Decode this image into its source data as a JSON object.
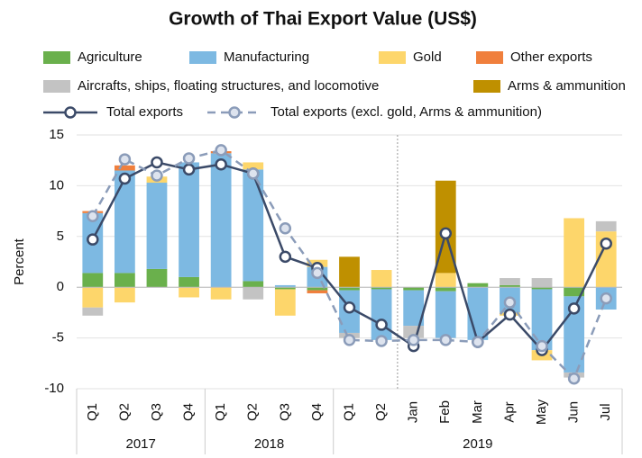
{
  "chart_data": {
    "type": "bar",
    "title": "Growth of Thai Export Value (US$)",
    "y_label": "Percent",
    "stacked": true,
    "grid": true,
    "ylim": [
      -10,
      15
    ],
    "yticks": [
      -10,
      -5,
      0,
      5,
      10,
      15
    ],
    "groups": [
      {
        "label": "2017",
        "categories": [
          "Q1",
          "Q2",
          "Q3",
          "Q4"
        ]
      },
      {
        "label": "2018",
        "categories": [
          "Q1",
          "Q2",
          "Q3",
          "Q4"
        ]
      },
      {
        "label": "2019",
        "categories": [
          "Q1",
          "Q2",
          "Jan",
          "Feb",
          "Mar",
          "Apr",
          "May",
          "Jun",
          "Jul"
        ]
      }
    ],
    "series": [
      {
        "name": "Agriculture",
        "color": "#6ab04c",
        "values": [
          1.4,
          1.4,
          1.8,
          1.0,
          0,
          0.6,
          -0.2,
          -0.3,
          -0.3,
          -0.2,
          -0.3,
          -0.4,
          0.4,
          0.2,
          -0.2,
          -0.9,
          0
        ]
      },
      {
        "name": "Manufacturing",
        "color": "#7db9e2",
        "values": [
          5.9,
          10.1,
          8.5,
          11.3,
          13.2,
          11.0,
          0.2,
          2.0,
          -4.2,
          -5.0,
          -3.5,
          -4.6,
          -5.2,
          -2.5,
          -6.0,
          -7.5,
          -2.2
        ]
      },
      {
        "name": "Gold",
        "color": "#fdd66b",
        "values": [
          -2.0,
          -1.5,
          0.6,
          -1.0,
          -1.2,
          0.7,
          -2.6,
          0.7,
          0,
          1.7,
          0,
          1.4,
          0,
          -0.3,
          -1.0,
          6.8,
          5.5
        ]
      },
      {
        "name": "Other exports",
        "color": "#f07f3c",
        "values": [
          0.2,
          0.5,
          0,
          0,
          0.2,
          0,
          0,
          -0.3,
          0,
          0,
          0,
          0,
          0,
          0,
          0,
          0,
          0
        ]
      },
      {
        "name": "Aircrafts, ships, floating structures, and locomotive",
        "color": "#c3c3c3",
        "values": [
          -0.8,
          0,
          0,
          0,
          0,
          -1.2,
          0,
          0,
          -0.5,
          0,
          -1.2,
          0,
          0,
          0.7,
          0.9,
          -0.5,
          1.0
        ]
      },
      {
        "name": "Arms & ammunition",
        "color": "#bf9000",
        "values": [
          0,
          0,
          0,
          0,
          0,
          0,
          0,
          0,
          3.0,
          0,
          0,
          9.1,
          0,
          0,
          0,
          0,
          0
        ]
      },
      {
        "name": "Total exports",
        "color": "#3b4a68",
        "kind": "line",
        "style": "solid",
        "values": [
          4.7,
          10.7,
          12.3,
          11.6,
          12.1,
          11.2,
          3.0,
          1.9,
          -2.0,
          -3.7,
          -5.8,
          5.3,
          -5.4,
          -2.7,
          -6.2,
          -2.1,
          4.3
        ]
      },
      {
        "name": "Total exports (excl. gold, Arms & ammunition)",
        "color": "#8b9cb9",
        "kind": "line",
        "style": "dashed",
        "values": [
          7.0,
          12.6,
          11.0,
          12.7,
          13.5,
          11.2,
          5.8,
          1.4,
          -5.2,
          -5.3,
          -5.2,
          -5.2,
          -5.4,
          -1.5,
          -5.8,
          -9.0,
          -1.1
        ]
      }
    ]
  }
}
